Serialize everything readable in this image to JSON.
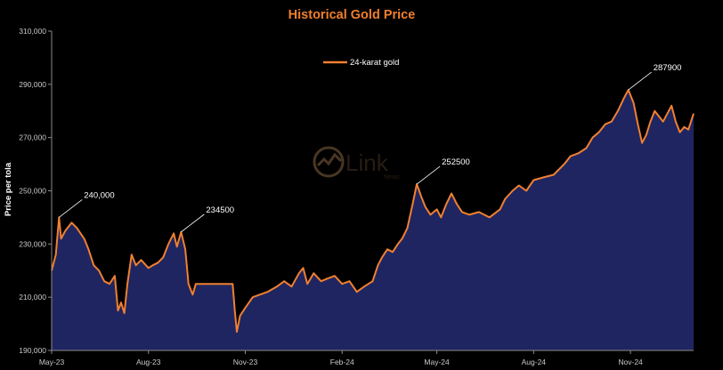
{
  "chart_data": {
    "type": "area",
    "title": "Historical Gold Price",
    "ylabel": "Price per tola",
    "xlabel": "",
    "ylim": [
      190000,
      310000
    ],
    "y_ticks": [
      190000,
      210000,
      230000,
      250000,
      270000,
      290000,
      310000
    ],
    "y_tick_labels": [
      "190,000",
      "210,000",
      "230,000",
      "250,000",
      "270,000",
      "290,000",
      "310,000"
    ],
    "x_range": [
      "2023-05-01",
      "2024-12-31"
    ],
    "x_ticks": [
      {
        "date": "2023-05-01",
        "label": "May-23"
      },
      {
        "date": "2023-08-01",
        "label": "Aug-23"
      },
      {
        "date": "2023-11-01",
        "label": "Nov-23"
      },
      {
        "date": "2024-02-01",
        "label": "Feb-24"
      },
      {
        "date": "2024-05-01",
        "label": "May-24"
      },
      {
        "date": "2024-08-01",
        "label": "Aug-24"
      },
      {
        "date": "2024-11-01",
        "label": "Nov-24"
      }
    ],
    "grid": false,
    "legend_position": "top-center",
    "series": [
      {
        "name": "24-karat gold",
        "line_color": "#f08030",
        "fill_color": "#1f2561",
        "points": [
          [
            "2023-05-01",
            220000
          ],
          [
            "2023-05-05",
            226000
          ],
          [
            "2023-05-08",
            240000
          ],
          [
            "2023-05-10",
            232000
          ],
          [
            "2023-05-14",
            235000
          ],
          [
            "2023-05-20",
            238000
          ],
          [
            "2023-05-25",
            236000
          ],
          [
            "2023-06-01",
            232000
          ],
          [
            "2023-06-05",
            228000
          ],
          [
            "2023-06-10",
            222000
          ],
          [
            "2023-06-15",
            220000
          ],
          [
            "2023-06-20",
            216000
          ],
          [
            "2023-06-25",
            215000
          ],
          [
            "2023-06-30",
            218000
          ],
          [
            "2023-07-03",
            205000
          ],
          [
            "2023-07-06",
            208000
          ],
          [
            "2023-07-09",
            204000
          ],
          [
            "2023-07-12",
            215000
          ],
          [
            "2023-07-16",
            226000
          ],
          [
            "2023-07-20",
            222000
          ],
          [
            "2023-07-25",
            224000
          ],
          [
            "2023-08-01",
            221000
          ],
          [
            "2023-08-05",
            222000
          ],
          [
            "2023-08-10",
            223000
          ],
          [
            "2023-08-15",
            225000
          ],
          [
            "2023-08-20",
            230000
          ],
          [
            "2023-08-25",
            234000
          ],
          [
            "2023-08-28",
            229000
          ],
          [
            "2023-09-01",
            234500
          ],
          [
            "2023-09-05",
            228000
          ],
          [
            "2023-09-08",
            215000
          ],
          [
            "2023-09-12",
            211000
          ],
          [
            "2023-09-15",
            215000
          ],
          [
            "2023-09-20",
            215000
          ],
          [
            "2023-10-01",
            215000
          ],
          [
            "2023-10-10",
            215000
          ],
          [
            "2023-10-20",
            215000
          ],
          [
            "2023-10-22",
            205000
          ],
          [
            "2023-10-24",
            197000
          ],
          [
            "2023-10-27",
            203000
          ],
          [
            "2023-11-01",
            206000
          ],
          [
            "2023-11-08",
            210000
          ],
          [
            "2023-11-15",
            211000
          ],
          [
            "2023-11-22",
            212000
          ],
          [
            "2023-12-01",
            214000
          ],
          [
            "2023-12-08",
            216000
          ],
          [
            "2023-12-15",
            214000
          ],
          [
            "2023-12-22",
            219000
          ],
          [
            "2023-12-26",
            221000
          ],
          [
            "2023-12-30",
            215000
          ],
          [
            "2024-01-05",
            219000
          ],
          [
            "2024-01-12",
            216000
          ],
          [
            "2024-01-18",
            217000
          ],
          [
            "2024-01-25",
            218000
          ],
          [
            "2024-02-01",
            215000
          ],
          [
            "2024-02-08",
            216000
          ],
          [
            "2024-02-15",
            212000
          ],
          [
            "2024-02-22",
            214000
          ],
          [
            "2024-03-01",
            216000
          ],
          [
            "2024-03-06",
            222000
          ],
          [
            "2024-03-10",
            225000
          ],
          [
            "2024-03-15",
            228000
          ],
          [
            "2024-03-20",
            227000
          ],
          [
            "2024-03-25",
            230000
          ],
          [
            "2024-03-29",
            232000
          ],
          [
            "2024-04-03",
            236000
          ],
          [
            "2024-04-08",
            245000
          ],
          [
            "2024-04-12",
            252500
          ],
          [
            "2024-04-16",
            248000
          ],
          [
            "2024-04-20",
            244000
          ],
          [
            "2024-04-25",
            241000
          ],
          [
            "2024-05-01",
            243000
          ],
          [
            "2024-05-05",
            240000
          ],
          [
            "2024-05-10",
            245000
          ],
          [
            "2024-05-15",
            249000
          ],
          [
            "2024-05-20",
            245000
          ],
          [
            "2024-05-25",
            242000
          ],
          [
            "2024-06-01",
            241000
          ],
          [
            "2024-06-10",
            242000
          ],
          [
            "2024-06-20",
            240000
          ],
          [
            "2024-06-30",
            243000
          ],
          [
            "2024-07-05",
            247000
          ],
          [
            "2024-07-12",
            250000
          ],
          [
            "2024-07-18",
            252000
          ],
          [
            "2024-07-25",
            250000
          ],
          [
            "2024-08-01",
            254000
          ],
          [
            "2024-08-10",
            255000
          ],
          [
            "2024-08-20",
            256000
          ],
          [
            "2024-08-30",
            260000
          ],
          [
            "2024-09-05",
            263000
          ],
          [
            "2024-09-12",
            264000
          ],
          [
            "2024-09-20",
            266000
          ],
          [
            "2024-09-26",
            270000
          ],
          [
            "2024-10-02",
            272000
          ],
          [
            "2024-10-08",
            275000
          ],
          [
            "2024-10-14",
            276000
          ],
          [
            "2024-10-20",
            280000
          ],
          [
            "2024-10-26",
            285000
          ],
          [
            "2024-10-30",
            287900
          ],
          [
            "2024-11-04",
            283000
          ],
          [
            "2024-11-08",
            275000
          ],
          [
            "2024-11-12",
            268000
          ],
          [
            "2024-11-16",
            271000
          ],
          [
            "2024-11-20",
            276000
          ],
          [
            "2024-11-24",
            280000
          ],
          [
            "2024-11-28",
            278000
          ],
          [
            "2024-12-02",
            276000
          ],
          [
            "2024-12-06",
            279000
          ],
          [
            "2024-12-10",
            282000
          ],
          [
            "2024-12-14",
            276000
          ],
          [
            "2024-12-18",
            272000
          ],
          [
            "2024-12-22",
            274000
          ],
          [
            "2024-12-26",
            273000
          ],
          [
            "2024-12-31",
            279000
          ]
        ]
      }
    ],
    "annotations": [
      {
        "date": "2023-05-08",
        "value": 240000,
        "text": "240,000"
      },
      {
        "date": "2023-09-01",
        "value": 234500,
        "text": "234500"
      },
      {
        "date": "2024-04-12",
        "value": 252500,
        "text": "252500"
      },
      {
        "date": "2024-10-30",
        "value": 287900,
        "text": "287900"
      }
    ]
  },
  "watermark": {
    "text": "Link",
    "subtext": "News",
    "color": "#7a5a3a"
  }
}
